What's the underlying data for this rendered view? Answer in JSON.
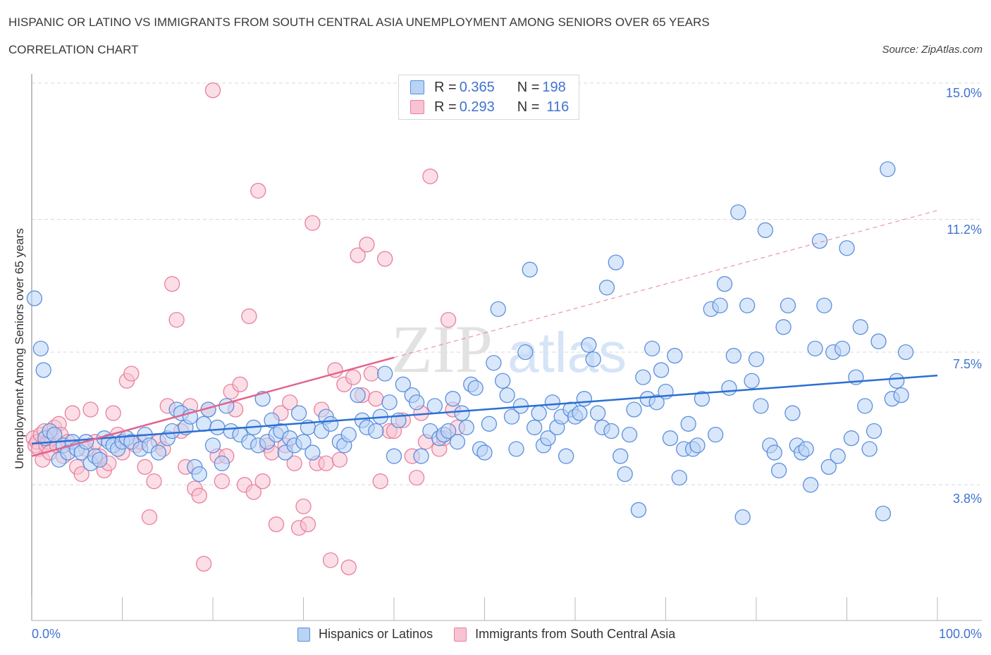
{
  "header": {
    "title": "HISPANIC OR LATINO VS IMMIGRANTS FROM SOUTH CENTRAL ASIA UNEMPLOYMENT AMONG SENIORS OVER 65 YEARS",
    "subtitle": "CORRELATION CHART",
    "source": "Source: ZipAtlas.com"
  },
  "watermark": {
    "zip": "ZIP",
    "atlas": "atlas"
  },
  "legend_top": [
    {
      "r_label": "R = ",
      "r_value": "0.365",
      "n_label": "N = ",
      "n_value": "198"
    },
    {
      "r_label": "R = ",
      "r_value": "0.293",
      "n_label": "N = ",
      "n_value": "116"
    }
  ],
  "colors": {
    "blue_fill": "#b9d3f5",
    "blue_stroke": "#5b8fdc",
    "blue_line": "#2a6fd4",
    "pink_fill": "#f8c3d2",
    "pink_stroke": "#e8809e",
    "pink_line": "#e4638c",
    "tick_text": "#3f73d0"
  },
  "chart_data": {
    "type": "scatter",
    "title": "HISPANIC OR LATINO VS IMMIGRANTS FROM SOUTH CENTRAL ASIA UNEMPLOYMENT AMONG SENIORS OVER 65 YEARS",
    "subtitle": "CORRELATION CHART",
    "xlabel": "",
    "ylabel": "Unemployment Among Seniors over 65 years",
    "xlim": [
      0,
      100
    ],
    "ylim": [
      0,
      15.2
    ],
    "x_tick_labels": [
      "0.0%",
      "100.0%"
    ],
    "y_ticks": [
      3.8,
      7.5,
      11.2,
      15.0
    ],
    "y_tick_labels": [
      "3.8%",
      "7.5%",
      "11.2%",
      "15.0%"
    ],
    "grid": true,
    "legend": [
      "Hispanics or Latinos",
      "Immigrants from South Central Asia"
    ],
    "legend_placement": "bottom-center",
    "series": [
      {
        "name": "Hispanics or Latinos",
        "R": 0.365,
        "N": 198,
        "trend": {
          "x": [
            0,
            100
          ],
          "y": [
            4.95,
            6.85
          ]
        },
        "points": [
          [
            0.3,
            9.0
          ],
          [
            1,
            7.6
          ],
          [
            1.3,
            7.0
          ],
          [
            1.5,
            5.1
          ],
          [
            2,
            5.3
          ],
          [
            2.5,
            5.2
          ],
          [
            3,
            4.5
          ],
          [
            3.5,
            4.9
          ],
          [
            4,
            4.7
          ],
          [
            4.5,
            5.0
          ],
          [
            5,
            4.8
          ],
          [
            5.5,
            4.7
          ],
          [
            6,
            5.0
          ],
          [
            6.5,
            4.4
          ],
          [
            7,
            4.6
          ],
          [
            7.5,
            4.5
          ],
          [
            8,
            5.1
          ],
          [
            8.5,
            5.0
          ],
          [
            9,
            4.9
          ],
          [
            9.5,
            4.8
          ],
          [
            10,
            5.0
          ],
          [
            10.5,
            5.1
          ],
          [
            11,
            5.0
          ],
          [
            12,
            4.8
          ],
          [
            12.5,
            5.2
          ],
          [
            13,
            4.9
          ],
          [
            14,
            4.7
          ],
          [
            15,
            5.1
          ],
          [
            15.5,
            5.3
          ],
          [
            16,
            5.9
          ],
          [
            16.5,
            5.8
          ],
          [
            17,
            5.4
          ],
          [
            17.5,
            5.7
          ],
          [
            18,
            4.3
          ],
          [
            18.5,
            4.1
          ],
          [
            19,
            5.5
          ],
          [
            19.5,
            5.9
          ],
          [
            20,
            4.9
          ],
          [
            20.5,
            5.4
          ],
          [
            21,
            4.4
          ],
          [
            21.5,
            6.0
          ],
          [
            22,
            5.3
          ],
          [
            23,
            5.2
          ],
          [
            24,
            5.0
          ],
          [
            24.5,
            5.4
          ],
          [
            25,
            4.9
          ],
          [
            25.5,
            6.2
          ],
          [
            26,
            5.0
          ],
          [
            26.5,
            5.6
          ],
          [
            27,
            5.2
          ],
          [
            27.5,
            5.3
          ],
          [
            28,
            4.7
          ],
          [
            28.5,
            5.1
          ],
          [
            29,
            4.9
          ],
          [
            29.5,
            5.8
          ],
          [
            30,
            5.0
          ],
          [
            30.5,
            5.4
          ],
          [
            31,
            4.7
          ],
          [
            32,
            5.3
          ],
          [
            32.5,
            5.7
          ],
          [
            33,
            5.5
          ],
          [
            34,
            5.0
          ],
          [
            34.5,
            4.9
          ],
          [
            35,
            5.2
          ],
          [
            36,
            6.3
          ],
          [
            36.5,
            5.6
          ],
          [
            37,
            5.4
          ],
          [
            38,
            5.3
          ],
          [
            38.5,
            5.7
          ],
          [
            39,
            6.9
          ],
          [
            39.5,
            6.1
          ],
          [
            40,
            4.6
          ],
          [
            40.5,
            5.6
          ],
          [
            41,
            6.6
          ],
          [
            42,
            6.3
          ],
          [
            42.5,
            6.1
          ],
          [
            43,
            4.6
          ],
          [
            44,
            5.3
          ],
          [
            44.5,
            6.0
          ],
          [
            45,
            5.1
          ],
          [
            45.5,
            5.2
          ],
          [
            46,
            5.3
          ],
          [
            46.5,
            6.2
          ],
          [
            47,
            5.0
          ],
          [
            47.5,
            5.8
          ],
          [
            48,
            5.4
          ],
          [
            48.5,
            6.6
          ],
          [
            49,
            6.5
          ],
          [
            49.5,
            4.8
          ],
          [
            50,
            4.7
          ],
          [
            50.5,
            5.5
          ],
          [
            51,
            7.2
          ],
          [
            51.5,
            8.7
          ],
          [
            52,
            6.7
          ],
          [
            52.5,
            6.3
          ],
          [
            53,
            5.7
          ],
          [
            53.5,
            4.8
          ],
          [
            54,
            6.0
          ],
          [
            54.5,
            7.5
          ],
          [
            55,
            9.8
          ],
          [
            55.5,
            5.4
          ],
          [
            56,
            5.8
          ],
          [
            56.5,
            4.9
          ],
          [
            57,
            5.1
          ],
          [
            57.5,
            6.1
          ],
          [
            58,
            5.4
          ],
          [
            58.5,
            5.7
          ],
          [
            59,
            4.6
          ],
          [
            59.5,
            5.9
          ],
          [
            60,
            5.7
          ],
          [
            60.5,
            5.8
          ],
          [
            61,
            6.2
          ],
          [
            61.5,
            7.7
          ],
          [
            62,
            7.3
          ],
          [
            62.5,
            5.8
          ],
          [
            63,
            5.4
          ],
          [
            63.5,
            9.3
          ],
          [
            64,
            5.3
          ],
          [
            64.5,
            10.0
          ],
          [
            65,
            4.6
          ],
          [
            65.5,
            4.1
          ],
          [
            66,
            5.2
          ],
          [
            66.5,
            5.9
          ],
          [
            67,
            3.1
          ],
          [
            67.5,
            6.8
          ],
          [
            68,
            6.2
          ],
          [
            68.5,
            7.6
          ],
          [
            69,
            6.1
          ],
          [
            69.5,
            7.0
          ],
          [
            70,
            6.4
          ],
          [
            70.5,
            5.1
          ],
          [
            71,
            7.4
          ],
          [
            71.5,
            4.0
          ],
          [
            72,
            4.8
          ],
          [
            72.5,
            5.5
          ],
          [
            73,
            4.8
          ],
          [
            73.5,
            4.9
          ],
          [
            74,
            6.2
          ],
          [
            75,
            8.7
          ],
          [
            75.5,
            5.2
          ],
          [
            76,
            8.8
          ],
          [
            76.5,
            9.4
          ],
          [
            77,
            6.5
          ],
          [
            77.5,
            7.4
          ],
          [
            78,
            11.4
          ],
          [
            78.5,
            2.9
          ],
          [
            79,
            8.8
          ],
          [
            79.5,
            6.7
          ],
          [
            80,
            7.3
          ],
          [
            80.5,
            6.0
          ],
          [
            81,
            10.9
          ],
          [
            81.5,
            4.9
          ],
          [
            82,
            4.7
          ],
          [
            82.5,
            4.2
          ],
          [
            83,
            8.2
          ],
          [
            83.5,
            8.8
          ],
          [
            84,
            5.8
          ],
          [
            84.5,
            4.9
          ],
          [
            85,
            4.7
          ],
          [
            85.5,
            4.8
          ],
          [
            86,
            3.8
          ],
          [
            86.5,
            7.6
          ],
          [
            87,
            10.6
          ],
          [
            87.5,
            8.8
          ],
          [
            88,
            4.3
          ],
          [
            88.5,
            7.5
          ],
          [
            89,
            4.6
          ],
          [
            89.5,
            7.6
          ],
          [
            90,
            10.4
          ],
          [
            90.5,
            5.1
          ],
          [
            91,
            6.8
          ],
          [
            91.5,
            8.2
          ],
          [
            92,
            6.0
          ],
          [
            92.5,
            4.8
          ],
          [
            93,
            5.3
          ],
          [
            93.5,
            7.8
          ],
          [
            94,
            3.0
          ],
          [
            94.5,
            12.6
          ],
          [
            95,
            6.2
          ],
          [
            95.5,
            6.7
          ],
          [
            96,
            6.3
          ],
          [
            96.5,
            7.5
          ]
        ]
      },
      {
        "name": "Immigrants from South Central Asia",
        "R": 0.293,
        "N": 116,
        "trend_solid": {
          "x": [
            0,
            40
          ],
          "y": [
            4.6,
            7.35
          ]
        },
        "trend_dashed": {
          "x": [
            40,
            100
          ],
          "y": [
            7.35,
            11.45
          ]
        },
        "points": [
          [
            0.2,
            5.1
          ],
          [
            0.4,
            4.9
          ],
          [
            0.6,
            5.0
          ],
          [
            0.8,
            4.8
          ],
          [
            1,
            5.2
          ],
          [
            1.2,
            4.5
          ],
          [
            1.4,
            5.3
          ],
          [
            1.6,
            4.9
          ],
          [
            1.8,
            5.0
          ],
          [
            2,
            4.7
          ],
          [
            2.2,
            5.1
          ],
          [
            2.5,
            5.4
          ],
          [
            2.8,
            4.9
          ],
          [
            3,
            5.5
          ],
          [
            3.2,
            5.2
          ],
          [
            3.5,
            4.6
          ],
          [
            4,
            5.0
          ],
          [
            4.5,
            5.8
          ],
          [
            5,
            4.3
          ],
          [
            5.5,
            4.1
          ],
          [
            6,
            4.8
          ],
          [
            6.5,
            5.9
          ],
          [
            7,
            5.0
          ],
          [
            7.5,
            4.6
          ],
          [
            8,
            4.2
          ],
          [
            8.5,
            4.4
          ],
          [
            9,
            5.8
          ],
          [
            9.5,
            5.2
          ],
          [
            10,
            4.7
          ],
          [
            10.5,
            6.7
          ],
          [
            11,
            6.9
          ],
          [
            11.5,
            4.9
          ],
          [
            12,
            5.0
          ],
          [
            12.5,
            4.3
          ],
          [
            13,
            2.9
          ],
          [
            13.5,
            3.9
          ],
          [
            14,
            5.0
          ],
          [
            14.5,
            4.8
          ],
          [
            15,
            6.0
          ],
          [
            15.5,
            9.4
          ],
          [
            16,
            8.4
          ],
          [
            16.5,
            5.3
          ],
          [
            17,
            4.3
          ],
          [
            17.5,
            6.0
          ],
          [
            18,
            3.7
          ],
          [
            18.5,
            3.5
          ],
          [
            19,
            1.6
          ],
          [
            19.5,
            5.9
          ],
          [
            20,
            14.8
          ],
          [
            20.5,
            4.6
          ],
          [
            21,
            3.9
          ],
          [
            21.5,
            4.6
          ],
          [
            22,
            6.4
          ],
          [
            22.5,
            5.9
          ],
          [
            23,
            6.6
          ],
          [
            23.5,
            3.8
          ],
          [
            24,
            8.5
          ],
          [
            24.5,
            3.6
          ],
          [
            25,
            12.0
          ],
          [
            25.5,
            3.9
          ],
          [
            26,
            4.9
          ],
          [
            26.5,
            4.7
          ],
          [
            27,
            2.7
          ],
          [
            27.5,
            5.8
          ],
          [
            28,
            4.9
          ],
          [
            28.5,
            6.1
          ],
          [
            29,
            4.4
          ],
          [
            29.5,
            2.6
          ],
          [
            30,
            3.2
          ],
          [
            30.5,
            2.7
          ],
          [
            31,
            11.1
          ],
          [
            31.5,
            4.4
          ],
          [
            32,
            5.9
          ],
          [
            32.5,
            4.4
          ],
          [
            33,
            1.7
          ],
          [
            33.5,
            7.0
          ],
          [
            34,
            4.5
          ],
          [
            34.5,
            6.6
          ],
          [
            35,
            1.5
          ],
          [
            35.5,
            6.8
          ],
          [
            36,
            10.2
          ],
          [
            36.5,
            6.3
          ],
          [
            37,
            10.5
          ],
          [
            37.5,
            6.9
          ],
          [
            38,
            6.2
          ],
          [
            38.5,
            3.9
          ],
          [
            39,
            10.1
          ],
          [
            39.5,
            5.3
          ],
          [
            40,
            5.3
          ],
          [
            41,
            5.6
          ],
          [
            42,
            4.6
          ],
          [
            42.5,
            4.0
          ],
          [
            43,
            5.8
          ],
          [
            43.5,
            5.0
          ],
          [
            44,
            12.4
          ],
          [
            44.5,
            14.8
          ],
          [
            45,
            4.8
          ],
          [
            45.5,
            5.1
          ],
          [
            46,
            8.4
          ],
          [
            46.5,
            5.9
          ],
          [
            47,
            5.4
          ]
        ]
      }
    ]
  },
  "bottom_legend": {
    "items": [
      {
        "label": "Hispanics or Latinos"
      },
      {
        "label": "Immigrants from South Central Asia"
      }
    ]
  },
  "axis": {
    "y_label": "Unemployment Among Seniors over 65 years",
    "x_min_label": "0.0%",
    "x_max_label": "100.0%"
  }
}
